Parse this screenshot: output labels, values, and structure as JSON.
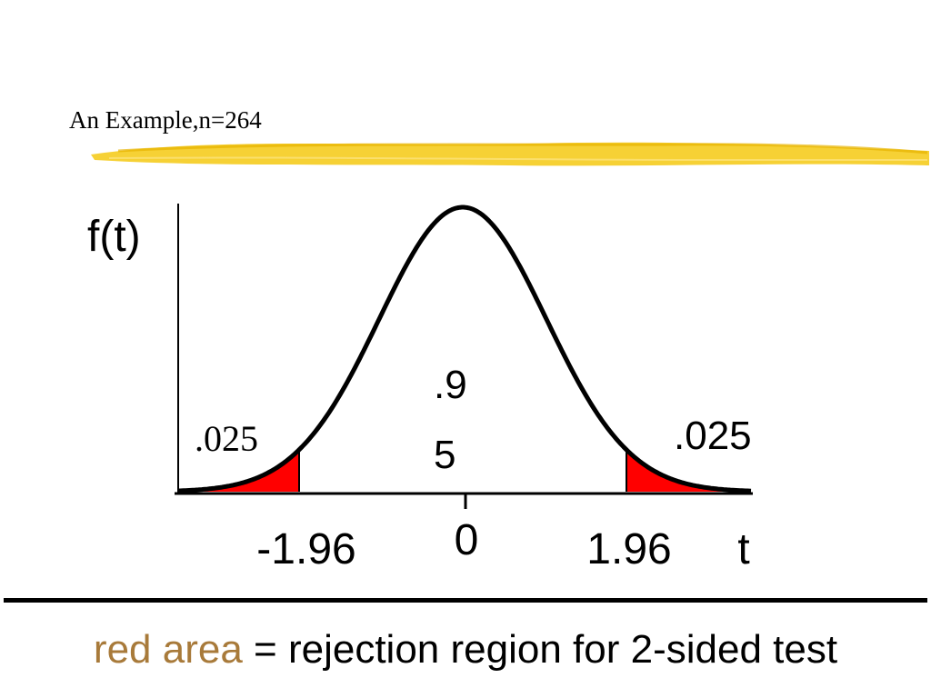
{
  "slide": {
    "title": "An Example,n=264"
  },
  "diagram": {
    "axes": {
      "y_label": "f(t)",
      "x_label": "t"
    },
    "tick_labels": {
      "left_critical": "-1.96",
      "center": "0",
      "right_critical": "1.96"
    },
    "areas": {
      "left_tail": ".025",
      "center_line1": ".9",
      "center_line2": "5",
      "right_tail": ".025"
    },
    "colors": {
      "tail_fill": "#ff0000",
      "curve": "#000000",
      "highlighter": "#f2c200"
    }
  },
  "caption": {
    "highlight": "red area",
    "rest": " = rejection region for 2-sided test",
    "highlight_color": "#a87a3a"
  }
}
